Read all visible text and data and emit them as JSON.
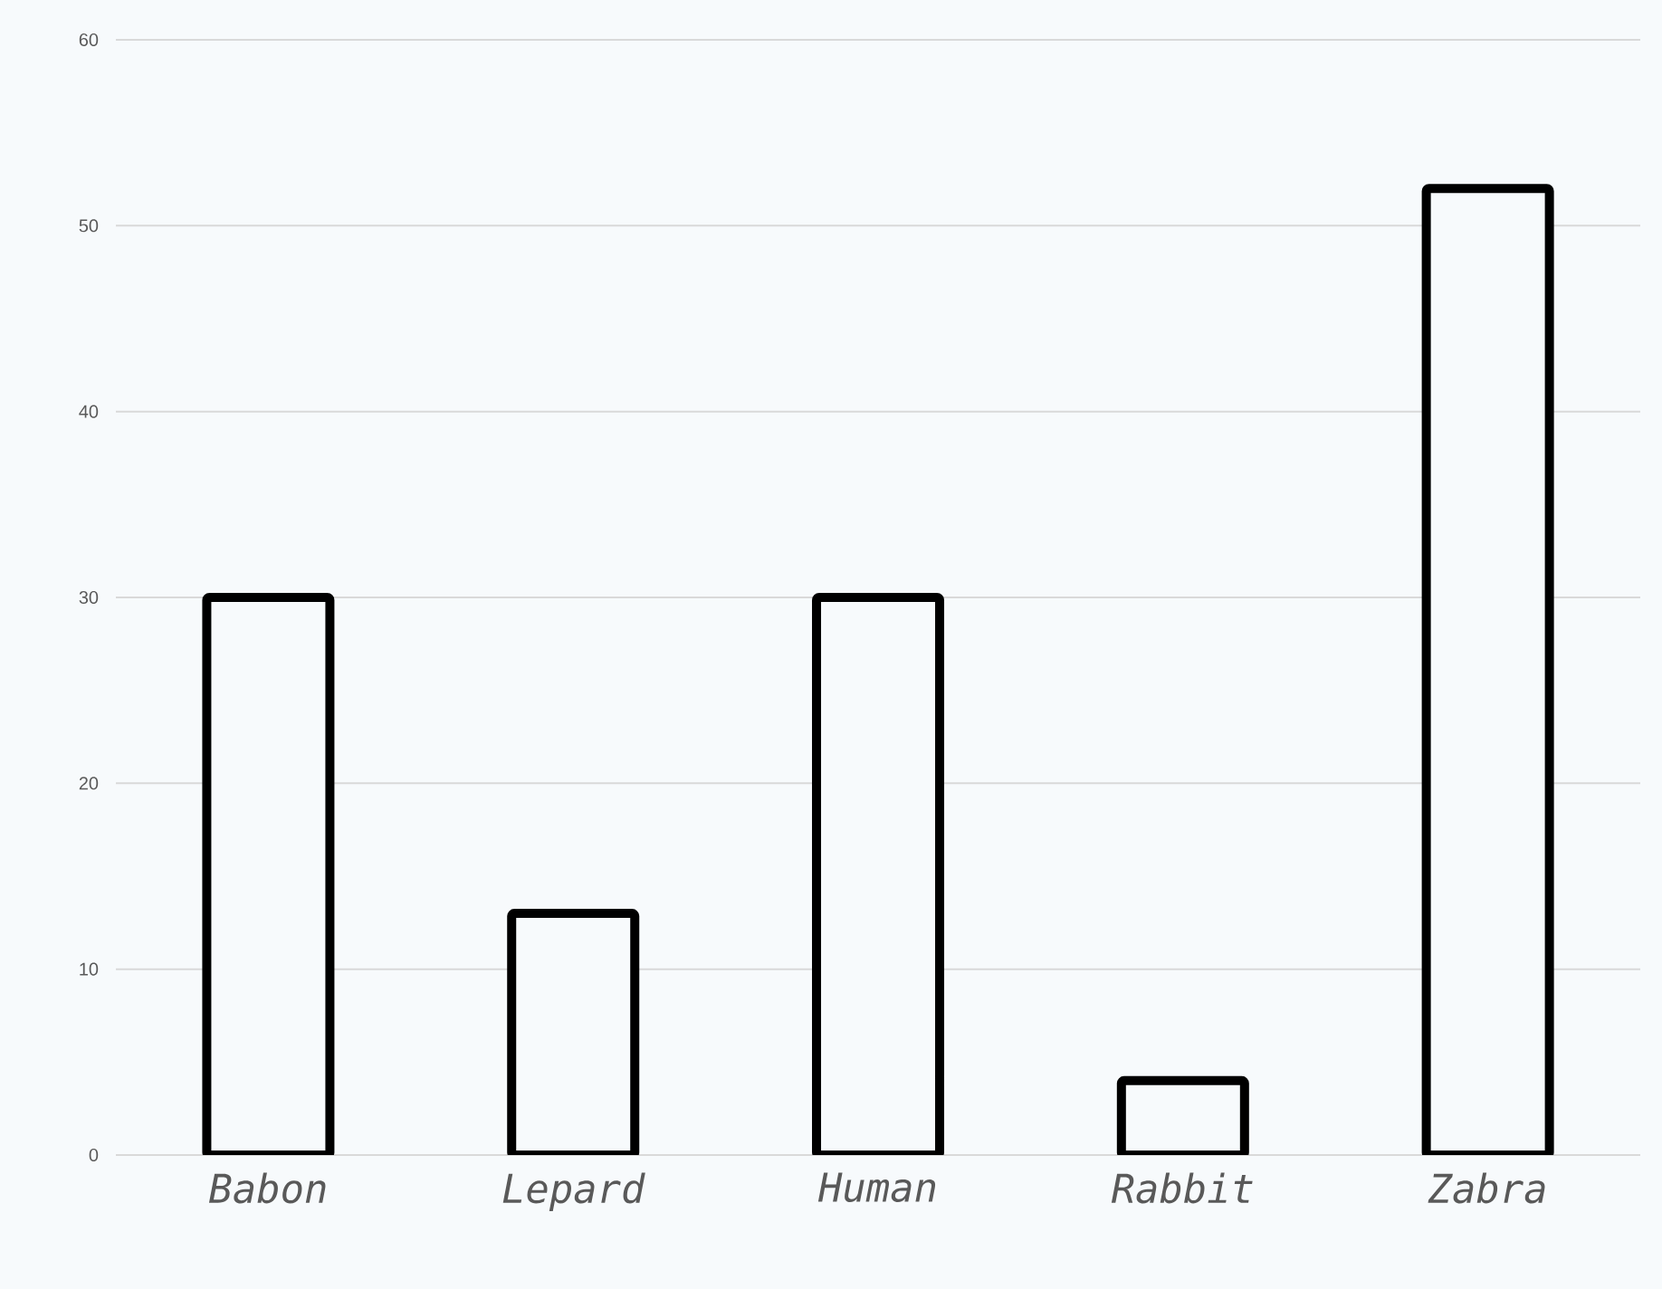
{
  "chart_data": {
    "type": "bar",
    "categories": [
      "Babon",
      "Lepard",
      "Human",
      "Rabbit",
      "Zabra"
    ],
    "values": [
      30,
      13,
      30,
      4,
      52
    ],
    "color": "#000000",
    "ylim": [
      0,
      60
    ],
    "yticks": [
      0,
      10,
      20,
      30,
      40,
      50,
      60
    ],
    "grid": "y"
  }
}
